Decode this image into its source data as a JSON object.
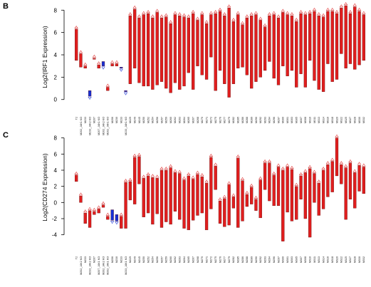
{
  "colors": {
    "red": "#e01e1e",
    "blue": "#1530d6",
    "red_marker": "#e03a3a",
    "blue_marker": "#2d44d8"
  },
  "chart_data": [
    {
      "type": "bar",
      "panel": "B",
      "ylabel": "Log2(IRF1 Expression)",
      "ylim": [
        -0.4,
        8.4
      ],
      "yticks": [
        0,
        2,
        4,
        6,
        8
      ],
      "categories": [
        "T2",
        "M202_JAK1 KO",
        "M233",
        "M233_JAK2 KO",
        "M207",
        "M207_JAK1 KO",
        "M202_JAK2 KO",
        "M202_JAK1 KO",
        "M206",
        "M230",
        "M233",
        "M233_JAK1 KO",
        "M229",
        "M249",
        "M245",
        "M250",
        "M252",
        "M254",
        "M256",
        "M257",
        "M259",
        "M260",
        "M262",
        "M263",
        "M264",
        "M265",
        "M267",
        "M268",
        "M270",
        "M271",
        "M272",
        "M275",
        "M276",
        "M277",
        "M279",
        "M282",
        "M285",
        "M286",
        "M288",
        "M289",
        "M290",
        "M292",
        "M293",
        "M294",
        "M296",
        "M297",
        "M300",
        "M301",
        "M303",
        "M305",
        "M307",
        "M308",
        "M310",
        "M311",
        "M313",
        "M314",
        "M316",
        "M318",
        "M320",
        "M322",
        "M325",
        "M327",
        "M328",
        "M330",
        "M332"
      ],
      "bars": [
        {
          "low": 3.5,
          "high": 6.3,
          "color": "red"
        },
        {
          "low": 2.9,
          "high": 4.1,
          "color": "red"
        },
        {
          "low": 2.8,
          "high": 3.0,
          "color": "red"
        },
        {
          "low": 0.3,
          "high": 0.8,
          "color": "blue"
        },
        {
          "low": 3.6,
          "high": 3.7,
          "color": "red"
        },
        {
          "low": 2.8,
          "high": 3.1,
          "color": "red"
        },
        {
          "low": 3.0,
          "high": 3.4,
          "color": "blue"
        },
        {
          "low": 0.8,
          "high": 1.1,
          "color": "red"
        },
        {
          "low": 3.0,
          "high": 3.2,
          "color": "red"
        },
        {
          "low": 3.0,
          "high": 3.2,
          "color": "red"
        },
        {
          "low": 2.8,
          "high": 2.9,
          "color": "blue"
        },
        {
          "low": 0.7,
          "high": 0.8,
          "color": "blue"
        },
        {
          "low": 1.4,
          "high": 7.5,
          "color": "red"
        },
        {
          "low": 2.8,
          "high": 8.1,
          "color": "red"
        },
        {
          "low": 1.5,
          "high": 7.3,
          "color": "red"
        },
        {
          "low": 1.2,
          "high": 7.6,
          "color": "red"
        },
        {
          "low": 1.2,
          "high": 7.7,
          "color": "red"
        },
        {
          "low": 0.9,
          "high": 7.3,
          "color": "red"
        },
        {
          "low": 1.3,
          "high": 7.8,
          "color": "red"
        },
        {
          "low": 1.6,
          "high": 7.3,
          "color": "red"
        },
        {
          "low": 1.0,
          "high": 7.4,
          "color": "red"
        },
        {
          "low": 0.6,
          "high": 6.8,
          "color": "red"
        },
        {
          "low": 1.5,
          "high": 7.6,
          "color": "red"
        },
        {
          "low": 0.9,
          "high": 7.5,
          "color": "red"
        },
        {
          "low": 1.2,
          "high": 7.4,
          "color": "red"
        },
        {
          "low": 2.4,
          "high": 7.3,
          "color": "red"
        },
        {
          "low": 0.9,
          "high": 7.7,
          "color": "red"
        },
        {
          "low": 3.0,
          "high": 7.1,
          "color": "red"
        },
        {
          "low": 2.2,
          "high": 7.6,
          "color": "red"
        },
        {
          "low": 1.8,
          "high": 6.8,
          "color": "red"
        },
        {
          "low": 3.8,
          "high": 7.6,
          "color": "red"
        },
        {
          "low": 0.8,
          "high": 7.7,
          "color": "red"
        },
        {
          "low": 2.6,
          "high": 7.9,
          "color": "red"
        },
        {
          "low": 1.4,
          "high": 7.5,
          "color": "red"
        },
        {
          "low": 0.2,
          "high": 8.2,
          "color": "red"
        },
        {
          "low": 1.4,
          "high": 7.0,
          "color": "red"
        },
        {
          "low": 2.8,
          "high": 7.6,
          "color": "red"
        },
        {
          "low": 2.9,
          "high": 6.7,
          "color": "red"
        },
        {
          "low": 2.2,
          "high": 7.3,
          "color": "red"
        },
        {
          "low": 1.0,
          "high": 7.5,
          "color": "red"
        },
        {
          "low": 1.6,
          "high": 7.6,
          "color": "red"
        },
        {
          "low": 2.0,
          "high": 7.1,
          "color": "red"
        },
        {
          "low": 2.6,
          "high": 6.5,
          "color": "red"
        },
        {
          "low": 3.4,
          "high": 7.5,
          "color": "red"
        },
        {
          "low": 1.9,
          "high": 7.6,
          "color": "red"
        },
        {
          "low": 1.3,
          "high": 7.3,
          "color": "red"
        },
        {
          "low": 3.0,
          "high": 7.8,
          "color": "red"
        },
        {
          "low": 2.1,
          "high": 7.6,
          "color": "red"
        },
        {
          "low": 2.6,
          "high": 7.5,
          "color": "red"
        },
        {
          "low": 1.1,
          "high": 7.0,
          "color": "red"
        },
        {
          "low": 2.3,
          "high": 7.7,
          "color": "red"
        },
        {
          "low": 1.1,
          "high": 7.6,
          "color": "red"
        },
        {
          "low": 3.5,
          "high": 7.7,
          "color": "red"
        },
        {
          "low": 1.7,
          "high": 7.9,
          "color": "red"
        },
        {
          "low": 0.9,
          "high": 7.5,
          "color": "red"
        },
        {
          "low": 0.7,
          "high": 7.4,
          "color": "red"
        },
        {
          "low": 3.2,
          "high": 7.9,
          "color": "red"
        },
        {
          "low": 1.6,
          "high": 7.9,
          "color": "red"
        },
        {
          "low": 1.8,
          "high": 7.7,
          "color": "red"
        },
        {
          "low": 4.1,
          "high": 8.2,
          "color": "red"
        },
        {
          "low": 2.8,
          "high": 8.4,
          "color": "red"
        },
        {
          "low": 3.2,
          "high": 7.7,
          "color": "red"
        },
        {
          "low": 2.7,
          "high": 8.3,
          "color": "red"
        },
        {
          "low": 3.1,
          "high": 7.9,
          "color": "red"
        },
        {
          "low": 3.5,
          "high": 7.6,
          "color": "red"
        }
      ]
    },
    {
      "type": "bar",
      "panel": "C",
      "ylabel": "Log2(CD274 Expression)",
      "ylim": [
        -5,
        8.5
      ],
      "yticks": [
        -4,
        -2,
        0,
        2,
        4,
        6,
        8
      ],
      "categories": [
        "T2",
        "M202_JAK2 KO",
        "M233",
        "M233_JAK2 KO",
        "M207",
        "M207_JAK1 KO",
        "M202_JAK2 KO",
        "M202_JAK1 KO",
        "M206",
        "M230",
        "M233",
        "M233_JAK1 KO",
        "M229",
        "M249",
        "M245",
        "M250",
        "M252",
        "M254",
        "M256",
        "M257",
        "M259",
        "M260",
        "M262",
        "M263",
        "M264",
        "M265",
        "M267",
        "M268",
        "M270",
        "M271",
        "M272",
        "M275",
        "M276",
        "M277",
        "M279",
        "M282",
        "M285",
        "M286",
        "M288",
        "M289",
        "M290",
        "M292",
        "M293",
        "M294",
        "M296",
        "M297",
        "M300",
        "M301",
        "M303",
        "M305",
        "M307",
        "M308",
        "M310",
        "M311",
        "M313",
        "M314",
        "M316",
        "M318",
        "M320",
        "M322",
        "M325",
        "M327",
        "M328",
        "M330",
        "M332"
      ],
      "bars": [
        {
          "low": 2.6,
          "high": 3.4,
          "color": "red"
        },
        {
          "low": 0.0,
          "high": 0.8,
          "color": "red"
        },
        {
          "low": -2.6,
          "high": -1.3,
          "color": "red"
        },
        {
          "low": -3.1,
          "high": -1.0,
          "color": "red"
        },
        {
          "low": -1.5,
          "high": -1.1,
          "color": "red"
        },
        {
          "low": -1.3,
          "high": -0.8,
          "color": "red"
        },
        {
          "low": -0.6,
          "high": -0.3,
          "color": "red"
        },
        {
          "low": -2.1,
          "high": -1.7,
          "color": "red"
        },
        {
          "low": -2.2,
          "high": -0.9,
          "color": "blue"
        },
        {
          "low": -2.3,
          "high": -1.5,
          "color": "blue"
        },
        {
          "low": -3.2,
          "high": -1.7,
          "color": "red"
        },
        {
          "low": -3.2,
          "high": 2.5,
          "color": "red"
        },
        {
          "low": 0.3,
          "high": 2.6,
          "color": "red"
        },
        {
          "low": -0.2,
          "high": 5.6,
          "color": "red"
        },
        {
          "low": 2.3,
          "high": 5.7,
          "color": "red"
        },
        {
          "low": -1.8,
          "high": 3.0,
          "color": "red"
        },
        {
          "low": -1.3,
          "high": 3.3,
          "color": "red"
        },
        {
          "low": -2.7,
          "high": 3.1,
          "color": "red"
        },
        {
          "low": -1.4,
          "high": 3.0,
          "color": "red"
        },
        {
          "low": -3.1,
          "high": 4.0,
          "color": "red"
        },
        {
          "low": -2.4,
          "high": 4.0,
          "color": "red"
        },
        {
          "low": -2.7,
          "high": 4.3,
          "color": "red"
        },
        {
          "low": -1.1,
          "high": 3.7,
          "color": "red"
        },
        {
          "low": -2.1,
          "high": 3.6,
          "color": "red"
        },
        {
          "low": -3.2,
          "high": 2.8,
          "color": "red"
        },
        {
          "low": -3.4,
          "high": 3.3,
          "color": "red"
        },
        {
          "low": -2.2,
          "high": 2.9,
          "color": "red"
        },
        {
          "low": -1.6,
          "high": 3.5,
          "color": "red"
        },
        {
          "low": -1.3,
          "high": 3.2,
          "color": "red"
        },
        {
          "low": -3.4,
          "high": 2.4,
          "color": "red"
        },
        {
          "low": -0.8,
          "high": 5.6,
          "color": "red"
        },
        {
          "low": 1.6,
          "high": 4.5,
          "color": "red"
        },
        {
          "low": -2.6,
          "high": 0.2,
          "color": "red"
        },
        {
          "low": -3.0,
          "high": 0.5,
          "color": "red"
        },
        {
          "low": -2.8,
          "high": 2.2,
          "color": "red"
        },
        {
          "low": -0.7,
          "high": 0.7,
          "color": "red"
        },
        {
          "low": -3.1,
          "high": 5.5,
          "color": "red"
        },
        {
          "low": -2.3,
          "high": 2.7,
          "color": "red"
        },
        {
          "low": -0.5,
          "high": 1.0,
          "color": "red"
        },
        {
          "low": -0.2,
          "high": 1.9,
          "color": "red"
        },
        {
          "low": -1.0,
          "high": 0.4,
          "color": "red"
        },
        {
          "low": -1.9,
          "high": 2.8,
          "color": "red"
        },
        {
          "low": 1.6,
          "high": 4.9,
          "color": "red"
        },
        {
          "low": 0.2,
          "high": 4.9,
          "color": "red"
        },
        {
          "low": -0.4,
          "high": 3.4,
          "color": "red"
        },
        {
          "low": -0.4,
          "high": 4.4,
          "color": "red"
        },
        {
          "low": -4.8,
          "high": 4.0,
          "color": "red"
        },
        {
          "low": -1.2,
          "high": 4.4,
          "color": "red"
        },
        {
          "low": -2.3,
          "high": 4.1,
          "color": "red"
        },
        {
          "low": -2.1,
          "high": 2.0,
          "color": "red"
        },
        {
          "low": 0.4,
          "high": 3.3,
          "color": "red"
        },
        {
          "low": -2.0,
          "high": 3.7,
          "color": "red"
        },
        {
          "low": -4.3,
          "high": 4.2,
          "color": "red"
        },
        {
          "low": 0.0,
          "high": 3.6,
          "color": "red"
        },
        {
          "low": -1.6,
          "high": 2.4,
          "color": "red"
        },
        {
          "low": -0.8,
          "high": 4.0,
          "color": "red"
        },
        {
          "low": 0.7,
          "high": 4.7,
          "color": "red"
        },
        {
          "low": 1.3,
          "high": 5.1,
          "color": "red"
        },
        {
          "low": 3.3,
          "high": 8.0,
          "color": "red"
        },
        {
          "low": 2.3,
          "high": 4.7,
          "color": "red"
        },
        {
          "low": -2.1,
          "high": 4.3,
          "color": "red"
        },
        {
          "low": 0.4,
          "high": 4.9,
          "color": "red"
        },
        {
          "low": -0.7,
          "high": 3.7,
          "color": "red"
        },
        {
          "low": 1.4,
          "high": 4.6,
          "color": "red"
        },
        {
          "low": 1.1,
          "high": 4.4,
          "color": "red"
        }
      ]
    }
  ]
}
